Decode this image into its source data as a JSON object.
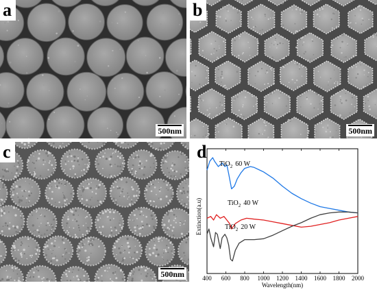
{
  "panels": {
    "a": {
      "letter": "a",
      "scale_label": "500nm"
    },
    "b": {
      "letter": "b",
      "scale_label": "500nm"
    },
    "c": {
      "letter": "c",
      "scale_label": "500nm"
    },
    "d": {
      "letter": "d"
    }
  },
  "chart_data": {
    "type": "line",
    "xlabel": "Wavelength(nm)",
    "ylabel": "Extinction(a.u)",
    "xlim": [
      400,
      2000
    ],
    "xticks": [
      400,
      600,
      800,
      1000,
      1200,
      1400,
      1600,
      1800,
      2000
    ],
    "grid": false,
    "series": [
      {
        "name": "TiO2 60 W",
        "color": "#1e78e6",
        "x": [
          400,
          430,
          460,
          480,
          520,
          560,
          590,
          610,
          630,
          660,
          690,
          720,
          760,
          800,
          860,
          900,
          1000,
          1100,
          1200,
          1300,
          1400,
          1500,
          1600,
          1700,
          1800,
          1900,
          2000
        ],
        "y": [
          0.76,
          0.86,
          0.9,
          0.86,
          0.8,
          0.84,
          0.8,
          0.82,
          0.72,
          0.55,
          0.58,
          0.66,
          0.73,
          0.78,
          0.8,
          0.79,
          0.74,
          0.67,
          0.58,
          0.5,
          0.44,
          0.39,
          0.35,
          0.33,
          0.31,
          0.29,
          0.28
        ]
      },
      {
        "name": "TiO2 40 W",
        "color": "#e02020",
        "x": [
          400,
          440,
          470,
          500,
          540,
          580,
          610,
          640,
          660,
          700,
          760,
          820,
          900,
          1000,
          1100,
          1200,
          1300,
          1400,
          1500,
          1600,
          1700,
          1800,
          1900,
          2000
        ],
        "y": [
          0.22,
          0.24,
          0.2,
          0.26,
          0.22,
          0.24,
          0.2,
          0.16,
          0.1,
          0.16,
          0.2,
          0.22,
          0.21,
          0.2,
          0.18,
          0.16,
          0.14,
          0.12,
          0.13,
          0.15,
          0.17,
          0.2,
          0.22,
          0.24
        ]
      },
      {
        "name": "TiO2 20 W",
        "color": "#404040",
        "x": [
          400,
          420,
          440,
          470,
          490,
          510,
          540,
          560,
          590,
          610,
          630,
          650,
          670,
          700,
          740,
          800,
          900,
          1000,
          1100,
          1200,
          1300,
          1400,
          1500,
          1600,
          1700,
          1800,
          1900,
          2000
        ],
        "y": [
          0.04,
          0.1,
          0.0,
          -0.1,
          0.06,
          0.04,
          -0.12,
          0.0,
          0.04,
          0.0,
          -0.08,
          -0.24,
          -0.26,
          -0.14,
          -0.06,
          -0.02,
          -0.02,
          -0.01,
          0.03,
          0.08,
          0.13,
          0.17,
          0.22,
          0.26,
          0.28,
          0.29,
          0.29,
          0.28
        ]
      }
    ],
    "annotations": [
      {
        "text": "TiO2 60 W",
        "sub": "2",
        "base": "TiO",
        "rest": "60 W"
      },
      {
        "text": "TiO2 40 W",
        "sub": "2",
        "base": "TiO",
        "rest": "40 W"
      },
      {
        "text": "TiO2 20 W",
        "sub": "2",
        "base": "TiO",
        "rest": "20 W"
      }
    ]
  }
}
